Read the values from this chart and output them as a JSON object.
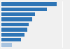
{
  "values": [
    18,
    15,
    11,
    10,
    9,
    8.5,
    7.5,
    6.5,
    3.5
  ],
  "bar_colors": [
    "#2e75b6",
    "#2e75b6",
    "#2e75b6",
    "#2e75b6",
    "#2e75b6",
    "#2e75b6",
    "#2e75b6",
    "#2e75b6",
    "#a8c4e0"
  ],
  "background_color": "#f0f0f0",
  "plot_bg_color": "#f0f0f0",
  "bar_height": 0.72,
  "xlim": [
    0,
    22
  ]
}
